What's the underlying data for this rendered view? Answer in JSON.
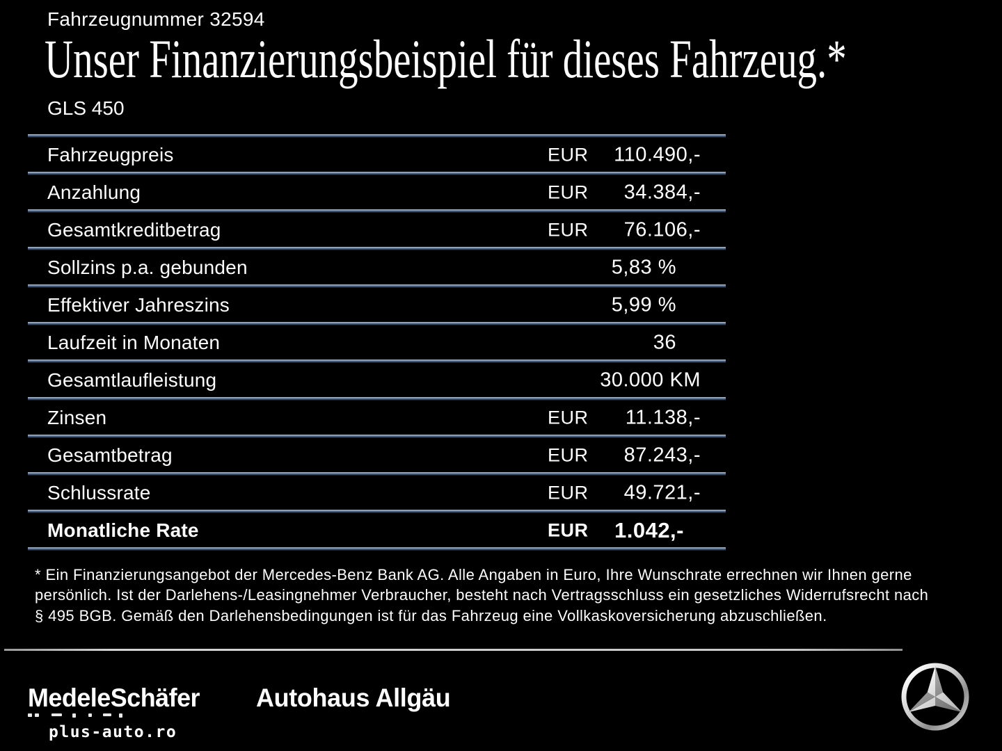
{
  "header": {
    "vehicle_number": "Fahrzeugnummer 32594",
    "title": "Unser Finanzierungsbeispiel für dieses Fahrzeug.*",
    "model": "GLS 450"
  },
  "table": {
    "rows": [
      {
        "label": "Fahrzeugpreis",
        "currency": "EUR",
        "value": "110.490,-",
        "bold": false,
        "inset": false
      },
      {
        "label": "Anzahlung",
        "currency": "EUR",
        "value": "34.384,-",
        "bold": false,
        "inset": false
      },
      {
        "label": "Gesamtkreditbetrag",
        "currency": "EUR",
        "value": "76.106,-",
        "bold": false,
        "inset": false
      },
      {
        "label": "Sollzins p.a. gebunden",
        "currency": "",
        "value": "5,83 %",
        "bold": false,
        "inset": true
      },
      {
        "label": "Effektiver Jahreszins",
        "currency": "",
        "value": "5,99 %",
        "bold": false,
        "inset": true
      },
      {
        "label": "Laufzeit in Monaten",
        "currency": "",
        "value": "36",
        "bold": false,
        "inset": true
      },
      {
        "label": "Gesamtlaufleistung",
        "currency": "",
        "value": "30.000 KM",
        "bold": false,
        "inset": false
      },
      {
        "label": "Zinsen",
        "currency": "EUR",
        "value": "11.138,-",
        "bold": false,
        "inset": false
      },
      {
        "label": "Gesamtbetrag",
        "currency": "EUR",
        "value": "87.243,-",
        "bold": false,
        "inset": false
      },
      {
        "label": "Schlussrate",
        "currency": "EUR",
        "value": "49.721,-",
        "bold": false,
        "inset": false
      },
      {
        "label": "Monatliche Rate",
        "currency": "EUR",
        "value": "1.042,-",
        "bold": true,
        "inset": false
      }
    ]
  },
  "footnote": {
    "lines": [
      "* Ein Finanzierungsangebot der Mercedes-Benz Bank AG. Alle Angaben in Euro, Ihre Wunschrate errechnen wir Ihnen gerne",
      "persönlich. Ist der Darlehens-/Leasingnehmer Verbraucher, besteht nach Vertragsschluss ein gesetzliches Widerrufsrecht nach",
      "§ 495 BGB. Gemäß den Darlehensbedingungen ist für das Fahrzeug eine Vollkaskoversicherung abzuschließen."
    ]
  },
  "footer": {
    "dealer_1": "MedeleSchäfer",
    "dealer_2": "Autohaus Allgäu",
    "watermark": "plus-auto.ro",
    "brand_icon": "mercedes-star-icon"
  },
  "colors": {
    "background": "#000000",
    "text": "#ffffff",
    "row_divider_top": "#b6c0ca",
    "row_divider_bottom": "#131f35",
    "footer_divider": "#c8c8c8",
    "star_silver_light": "#f2f2f2",
    "star_silver_dark": "#6f6f6f"
  }
}
